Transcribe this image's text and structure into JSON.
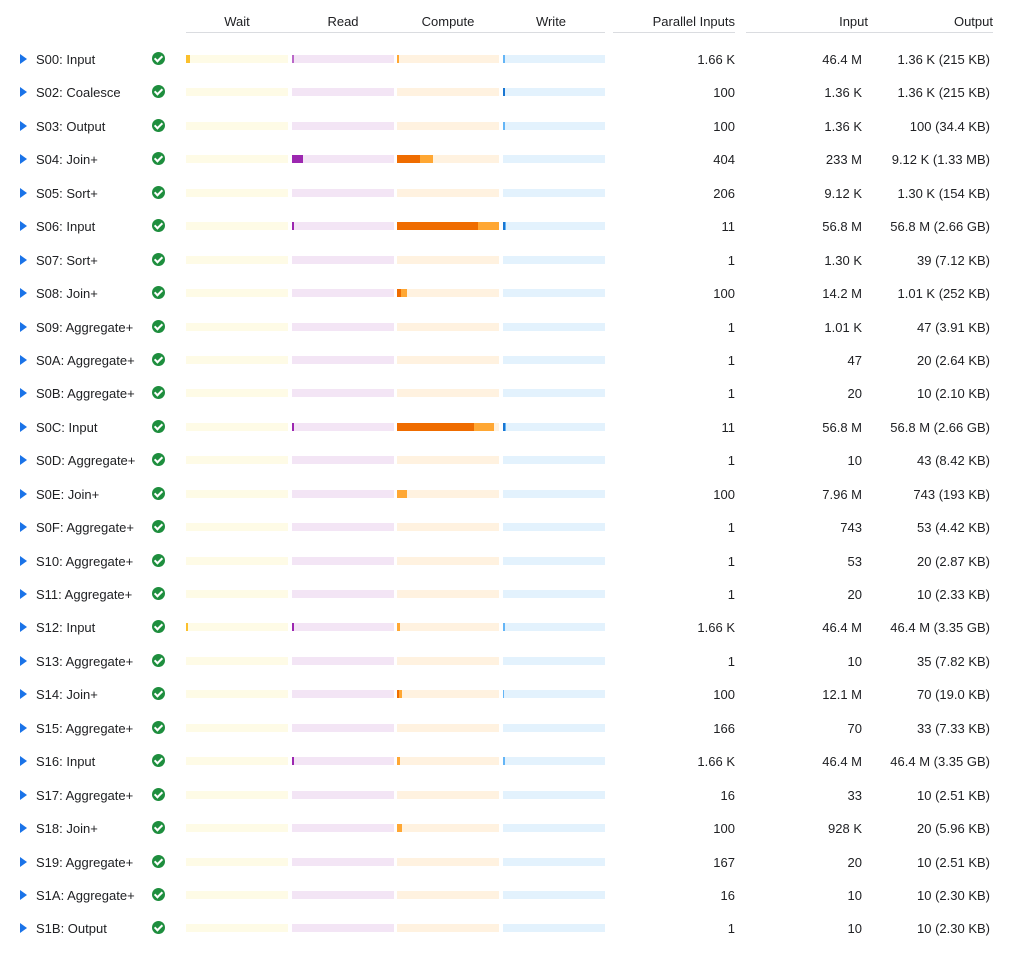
{
  "headers": {
    "wait": "Wait",
    "read": "Read",
    "compute": "Compute",
    "write": "Write",
    "parallel": "Parallel Inputs",
    "input": "Input",
    "output": "Output"
  },
  "colors": {
    "wait": {
      "bg": "#fefbe6",
      "max": "#fbc02d",
      "avg": "#f9a825"
    },
    "read": {
      "bg": "#f3e5f5",
      "max": "#ba68c8",
      "avg": "#9c27b0"
    },
    "compute": {
      "bg": "#fff2e0",
      "max": "#ffa733",
      "avg": "#ef6c00"
    },
    "write": {
      "bg": "#e3f2fd",
      "max": "#64b5f6",
      "avg": "#1976d2"
    },
    "status": "#1e8e3e",
    "expand": "#1a73e8"
  },
  "stages": [
    {
      "name": "S00: Input",
      "parallel": "1.66 K",
      "input": "46.4 M",
      "output": "1.36 K (215 KB)",
      "bars": {
        "wait": [
          0,
          0.04
        ],
        "read": [
          0,
          0.02
        ],
        "compute": [
          0,
          0.02
        ],
        "write": [
          0,
          0.02
        ]
      }
    },
    {
      "name": "S02: Coalesce",
      "parallel": "100",
      "input": "1.36 K",
      "output": "1.36 K (215 KB)",
      "bars": {
        "wait": [
          0,
          0
        ],
        "read": [
          0,
          0
        ],
        "compute": [
          0,
          0
        ],
        "write": [
          0.02,
          0.02
        ]
      }
    },
    {
      "name": "S03: Output",
      "parallel": "100",
      "input": "1.36 K",
      "output": "100 (34.4 KB)",
      "bars": {
        "wait": [
          0,
          0
        ],
        "read": [
          0,
          0
        ],
        "compute": [
          0,
          0
        ],
        "write": [
          0,
          0.02
        ]
      }
    },
    {
      "name": "S04: Join+",
      "parallel": "404",
      "input": "233 M",
      "output": "9.12 K (1.33 MB)",
      "bars": {
        "wait": [
          0,
          0
        ],
        "read": [
          0.11,
          0.11
        ],
        "compute": [
          0.23,
          0.35
        ],
        "write": [
          0,
          0
        ]
      }
    },
    {
      "name": "S05: Sort+",
      "parallel": "206",
      "input": "9.12 K",
      "output": "1.30 K (154 KB)",
      "bars": {
        "wait": [
          0,
          0
        ],
        "read": [
          0,
          0
        ],
        "compute": [
          0,
          0
        ],
        "write": [
          0,
          0
        ]
      }
    },
    {
      "name": "S06: Input",
      "parallel": "11",
      "input": "56.8 M",
      "output": "56.8 M (2.66 GB)",
      "bars": {
        "wait": [
          0,
          0
        ],
        "read": [
          0.02,
          0.02
        ],
        "compute": [
          0.79,
          1.0
        ],
        "write": [
          0.02,
          0.03
        ]
      }
    },
    {
      "name": "S07: Sort+",
      "parallel": "1",
      "input": "1.30 K",
      "output": "39 (7.12 KB)",
      "bars": {
        "wait": [
          0,
          0
        ],
        "read": [
          0,
          0
        ],
        "compute": [
          0,
          0
        ],
        "write": [
          0,
          0
        ]
      }
    },
    {
      "name": "S08: Join+",
      "parallel": "100",
      "input": "14.2 M",
      "output": "1.01 K (252 KB)",
      "bars": {
        "wait": [
          0,
          0
        ],
        "read": [
          0,
          0
        ],
        "compute": [
          0.04,
          0.1
        ],
        "write": [
          0,
          0
        ]
      }
    },
    {
      "name": "S09: Aggregate+",
      "parallel": "1",
      "input": "1.01 K",
      "output": "47 (3.91 KB)",
      "bars": {
        "wait": [
          0,
          0
        ],
        "read": [
          0,
          0
        ],
        "compute": [
          0,
          0
        ],
        "write": [
          0,
          0
        ]
      }
    },
    {
      "name": "S0A: Aggregate+",
      "parallel": "1",
      "input": "47",
      "output": "20 (2.64 KB)",
      "bars": {
        "wait": [
          0,
          0
        ],
        "read": [
          0,
          0
        ],
        "compute": [
          0,
          0
        ],
        "write": [
          0,
          0
        ]
      }
    },
    {
      "name": "S0B: Aggregate+",
      "parallel": "1",
      "input": "20",
      "output": "10 (2.10 KB)",
      "bars": {
        "wait": [
          0,
          0
        ],
        "read": [
          0,
          0
        ],
        "compute": [
          0,
          0
        ],
        "write": [
          0,
          0
        ]
      }
    },
    {
      "name": "S0C: Input",
      "parallel": "11",
      "input": "56.8 M",
      "output": "56.8 M (2.66 GB)",
      "bars": {
        "wait": [
          0,
          0
        ],
        "read": [
          0.02,
          0.02
        ],
        "compute": [
          0.75,
          0.95
        ],
        "write": [
          0.02,
          0.03
        ]
      }
    },
    {
      "name": "S0D: Aggregate+",
      "parallel": "1",
      "input": "10",
      "output": "43 (8.42 KB)",
      "bars": {
        "wait": [
          0,
          0
        ],
        "read": [
          0,
          0
        ],
        "compute": [
          0,
          0
        ],
        "write": [
          0,
          0
        ]
      }
    },
    {
      "name": "S0E: Join+",
      "parallel": "100",
      "input": "7.96 M",
      "output": "743 (193 KB)",
      "bars": {
        "wait": [
          0,
          0
        ],
        "read": [
          0,
          0
        ],
        "compute": [
          0,
          0.1
        ],
        "write": [
          0,
          0
        ]
      }
    },
    {
      "name": "S0F: Aggregate+",
      "parallel": "1",
      "input": "743",
      "output": "53 (4.42 KB)",
      "bars": {
        "wait": [
          0,
          0
        ],
        "read": [
          0,
          0
        ],
        "compute": [
          0,
          0
        ],
        "write": [
          0,
          0
        ]
      }
    },
    {
      "name": "S10: Aggregate+",
      "parallel": "1",
      "input": "53",
      "output": "20 (2.87 KB)",
      "bars": {
        "wait": [
          0,
          0
        ],
        "read": [
          0,
          0
        ],
        "compute": [
          0,
          0
        ],
        "write": [
          0,
          0
        ]
      }
    },
    {
      "name": "S11: Aggregate+",
      "parallel": "1",
      "input": "20",
      "output": "10 (2.33 KB)",
      "bars": {
        "wait": [
          0,
          0
        ],
        "read": [
          0,
          0
        ],
        "compute": [
          0,
          0
        ],
        "write": [
          0,
          0
        ]
      }
    },
    {
      "name": "S12: Input",
      "parallel": "1.66 K",
      "input": "46.4 M",
      "output": "46.4 M (3.35 GB)",
      "bars": {
        "wait": [
          0,
          0.02
        ],
        "read": [
          0.02,
          0.02
        ],
        "compute": [
          0,
          0.03
        ],
        "write": [
          0,
          0.02
        ]
      }
    },
    {
      "name": "S13: Aggregate+",
      "parallel": "1",
      "input": "10",
      "output": "35 (7.82 KB)",
      "bars": {
        "wait": [
          0,
          0
        ],
        "read": [
          0,
          0
        ],
        "compute": [
          0,
          0
        ],
        "write": [
          0,
          0
        ]
      }
    },
    {
      "name": "S14: Join+",
      "parallel": "100",
      "input": "12.1 M",
      "output": "70 (19.0 KB)",
      "bars": {
        "wait": [
          0,
          0
        ],
        "read": [
          0,
          0
        ],
        "compute": [
          0.02,
          0.05
        ],
        "write": [
          0,
          0.01
        ]
      }
    },
    {
      "name": "S15: Aggregate+",
      "parallel": "166",
      "input": "70",
      "output": "33 (7.33 KB)",
      "bars": {
        "wait": [
          0,
          0
        ],
        "read": [
          0,
          0
        ],
        "compute": [
          0,
          0
        ],
        "write": [
          0,
          0
        ]
      }
    },
    {
      "name": "S16: Input",
      "parallel": "1.66 K",
      "input": "46.4 M",
      "output": "46.4 M (3.35 GB)",
      "bars": {
        "wait": [
          0,
          0
        ],
        "read": [
          0.02,
          0.02
        ],
        "compute": [
          0,
          0.03
        ],
        "write": [
          0,
          0.02
        ]
      }
    },
    {
      "name": "S17: Aggregate+",
      "parallel": "16",
      "input": "33",
      "output": "10 (2.51 KB)",
      "bars": {
        "wait": [
          0,
          0
        ],
        "read": [
          0,
          0
        ],
        "compute": [
          0,
          0
        ],
        "write": [
          0,
          0
        ]
      }
    },
    {
      "name": "S18: Join+",
      "parallel": "100",
      "input": "928 K",
      "output": "20 (5.96 KB)",
      "bars": {
        "wait": [
          0,
          0
        ],
        "read": [
          0,
          0
        ],
        "compute": [
          0,
          0.05
        ],
        "write": [
          0,
          0
        ]
      }
    },
    {
      "name": "S19: Aggregate+",
      "parallel": "167",
      "input": "20",
      "output": "10 (2.51 KB)",
      "bars": {
        "wait": [
          0,
          0
        ],
        "read": [
          0,
          0
        ],
        "compute": [
          0,
          0
        ],
        "write": [
          0,
          0
        ]
      }
    },
    {
      "name": "S1A: Aggregate+",
      "parallel": "16",
      "input": "10",
      "output": "10 (2.30 KB)",
      "bars": {
        "wait": [
          0,
          0
        ],
        "read": [
          0,
          0
        ],
        "compute": [
          0,
          0
        ],
        "write": [
          0,
          0
        ]
      }
    },
    {
      "name": "S1B: Output",
      "parallel": "1",
      "input": "10",
      "output": "10 (2.30 KB)",
      "bars": {
        "wait": [
          0,
          0
        ],
        "read": [
          0,
          0
        ],
        "compute": [
          0,
          0
        ],
        "write": [
          0,
          0
        ]
      }
    }
  ]
}
